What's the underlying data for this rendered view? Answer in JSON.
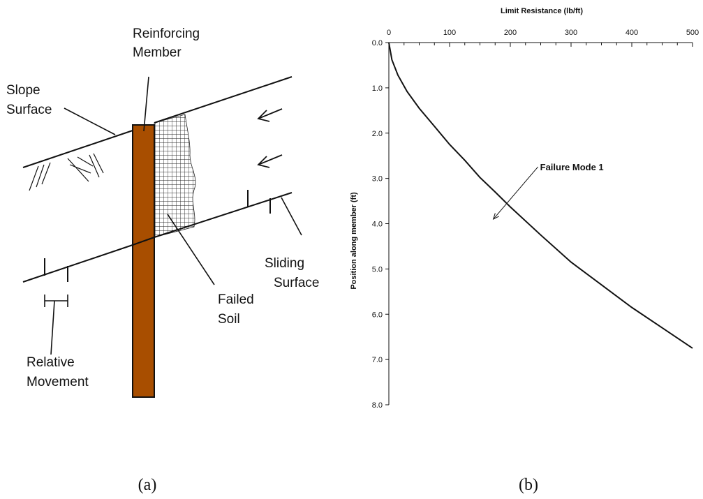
{
  "figure_a": {
    "caption": "(a)",
    "labels": {
      "slope_surface": [
        "Slope",
        "Surface"
      ],
      "reinforcing_member": [
        "Reinforcing",
        "Member"
      ],
      "sliding_surface": [
        "Sliding",
        "Surface"
      ],
      "failed_soil": [
        "Failed",
        "Soil"
      ],
      "relative_movement": [
        "Relative",
        "Movement"
      ]
    },
    "colors": {
      "member_fill": "#A84E00"
    }
  },
  "figure_b": {
    "caption": "(b)",
    "chart_data": {
      "type": "line",
      "title": "",
      "xlabel": "Limit Resistance  (lb/ft)",
      "ylabel": "Position along member (ft)",
      "xlim": [
        0,
        500
      ],
      "ylim": [
        0,
        8
      ],
      "y_inverted": true,
      "x_axis_position": "top",
      "x_ticks": [
        "0",
        "100",
        "200",
        "300",
        "400",
        "500"
      ],
      "y_ticks": [
        "0.0",
        "1.0",
        "2.0",
        "3.0",
        "4.0",
        "5.0",
        "6.0",
        "7.0",
        "8.0"
      ],
      "grid": false,
      "series": [
        {
          "name": "Failure Mode 1",
          "x": [
            0,
            5,
            15,
            30,
            50,
            75,
            100,
            125,
            150,
            175,
            200,
            250,
            300,
            350,
            400,
            450,
            500
          ],
          "y": [
            0.0,
            0.38,
            0.72,
            1.08,
            1.45,
            1.85,
            2.25,
            2.6,
            2.98,
            3.3,
            3.63,
            4.25,
            4.85,
            5.35,
            5.85,
            6.3,
            6.75
          ]
        }
      ],
      "annotations": [
        {
          "text": "Failure Mode 1",
          "x": 172,
          "y": 3.9
        }
      ]
    }
  }
}
